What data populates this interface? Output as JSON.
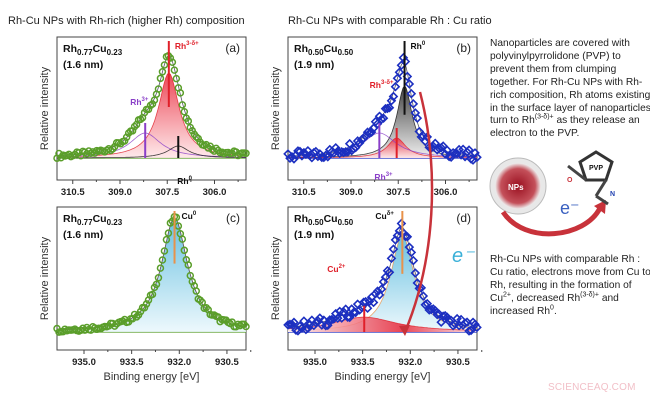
{
  "headers": {
    "left": "Rh-Cu NPs with Rh-rich (higher Rh) composition",
    "right": "Rh-Cu NPs with comparable Rh : Cu ratio"
  },
  "axis": {
    "ylabel": "Relative intensity",
    "xlabel": "Binding energy [eV]"
  },
  "notes": {
    "top": {
      "text": "Nanoparticles are covered with polyvinylpyrrolidone (PVP) to prevent them from clumping together. For Rh-Cu NPs with Rh-rich composition, Rh atoms existing in the surface layer of nanoparticles turn to Rh",
      "sup": "(3-δ)+",
      "tail": " as they release an electron to the PVP."
    },
    "bottom": {
      "text": "Rh-Cu NPs with comparable Rh : Cu ratio, electrons move from Cu to Rh, resulting in the formation of Cu",
      "sup1": "2+",
      "mid": ", decreased Rh",
      "sup2": "(3-δ)+",
      "mid2": "  and increased Rh",
      "sup3": "0",
      "end": "."
    }
  },
  "illustration": {
    "nps_label": "NPs",
    "pvp_label": "PVP",
    "o_label": "O",
    "n_label": "N",
    "electron": "e⁻"
  },
  "transfer_electron": "e⁻",
  "watermark": "SCIENCEAQ.COM",
  "colors": {
    "rh_rich_data": "#5a9e2a",
    "comparable_data": "#1c2fc0",
    "rh3d": "#e0202a",
    "rh3": "#8a3fc8",
    "rh0": "#111111",
    "cu0": "#e8924a",
    "cu_fill": "#5bbfe0",
    "cu2": "#e0202a"
  },
  "chart_data": [
    {
      "type": "scatter",
      "panel": "(a)",
      "sample": {
        "el1": "Rh",
        "x1": "0.77",
        "el2": "Cu",
        "x2": "0.23",
        "size": "(1.6 nm)"
      },
      "xlim": [
        311.0,
        305.0
      ],
      "xticks": [
        "310.5",
        "309.0",
        "307.5",
        "306.0"
      ],
      "xtick_values": [
        310.5,
        309.0,
        307.5,
        306.0
      ],
      "ylabel": "Relative intensity",
      "components": [
        {
          "label": "Rh",
          "sup": "3-δ+",
          "center": 307.45,
          "height": 0.85,
          "fwhm": 0.8,
          "color": "#e0202a"
        },
        {
          "label": "Rh",
          "sup": "3+",
          "center": 308.2,
          "height": 0.25,
          "fwhm": 1.2,
          "color": "#8a3fc8"
        },
        {
          "label": "Rh",
          "sup": "0",
          "center": 307.15,
          "height": 0.12,
          "fwhm": 0.8,
          "color": "#111111"
        }
      ]
    },
    {
      "type": "scatter",
      "panel": "(b)",
      "sample": {
        "el1": "Rh",
        "x1": "0.50",
        "el2": "Cu",
        "x2": "0.50",
        "size": "(1.9 nm)"
      },
      "xlim": [
        311.0,
        305.0
      ],
      "xticks": [
        "310.5",
        "309.0",
        "307.5",
        "306.0"
      ],
      "xtick_values": [
        310.5,
        309.0,
        307.5,
        306.0
      ],
      "ylabel": "Relative intensity",
      "components": [
        {
          "label": "Rh",
          "sup": "0",
          "center": 307.3,
          "height": 0.72,
          "fwhm": 0.6,
          "color": "#111111"
        },
        {
          "label": "Rh",
          "sup": "3-δ+",
          "center": 307.55,
          "height": 0.2,
          "fwhm": 0.7,
          "color": "#e0202a"
        },
        {
          "label": "Rh",
          "sup": "3+",
          "center": 308.1,
          "height": 0.25,
          "fwhm": 1.3,
          "color": "#8a3fc8"
        }
      ]
    },
    {
      "type": "scatter",
      "panel": "(c)",
      "sample": {
        "el1": "Rh",
        "x1": "0.77",
        "el2": "Cu",
        "x2": "0.23",
        "size": "(1.6 nm)"
      },
      "xlim": [
        935.85,
        929.9
      ],
      "xticks": [
        "935.0",
        "933.5",
        "932.0",
        "930.5"
      ],
      "xtick_values": [
        935.0,
        933.5,
        932.0,
        930.5
      ],
      "ylabel": "Relative intensity",
      "xlabel": "Binding energy [eV]",
      "components": [
        {
          "label": "Cu",
          "sup": "0",
          "center": 932.15,
          "height": 1.0,
          "fwhm": 1.0,
          "color": "#e8924a"
        }
      ]
    },
    {
      "type": "scatter",
      "panel": "(d)",
      "sample": {
        "el1": "Rh",
        "x1": "0.50",
        "el2": "Cu",
        "x2": "0.50",
        "size": "(1.9 nm)"
      },
      "xlim": [
        935.85,
        929.9
      ],
      "xticks": [
        "935.0",
        "933.5",
        "932.0",
        "930.5"
      ],
      "xtick_values": [
        935.0,
        933.5,
        932.0,
        930.5
      ],
      "ylabel": "Relative intensity",
      "xlabel": "Binding energy [eV]",
      "components": [
        {
          "label": "Cu",
          "sup": "δ+",
          "center": 932.25,
          "height": 0.85,
          "fwhm": 0.9,
          "color": "#e8924a"
        },
        {
          "label": "Cu",
          "sup": "2+",
          "center": 933.45,
          "height": 0.13,
          "fwhm": 2.5,
          "color": "#e0202a"
        }
      ]
    }
  ]
}
